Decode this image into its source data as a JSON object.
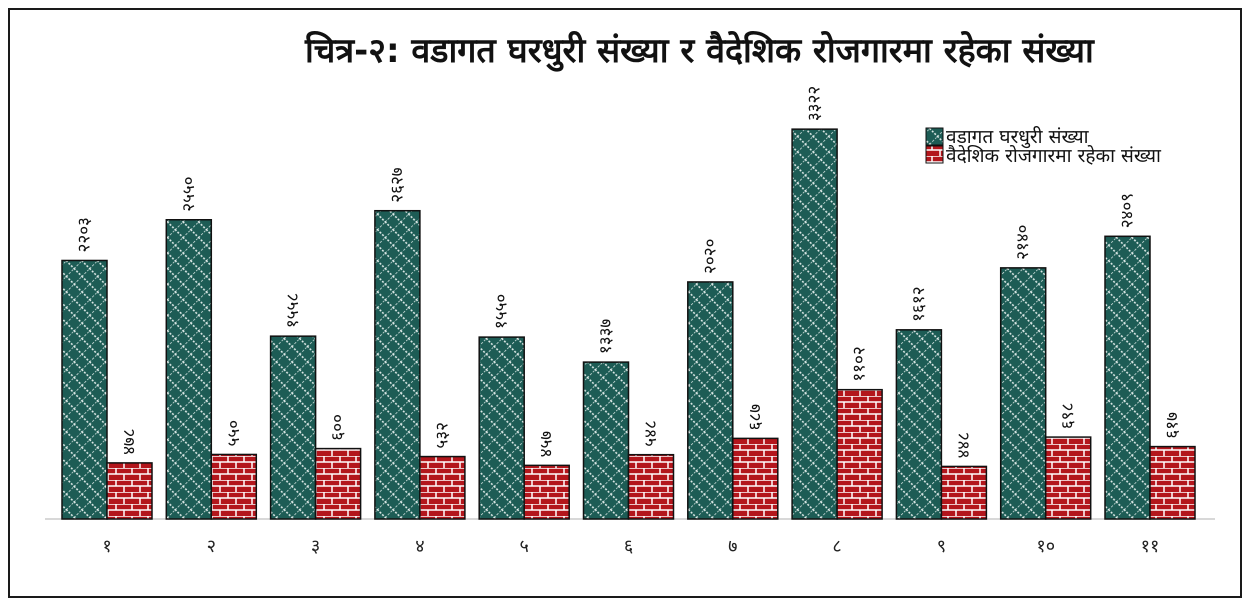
{
  "chart_data": {
    "type": "bar",
    "title": "चित्र-२: वडागत घरधुरी संख्या र वैदेशिक  रोजगारमा रहेका संख्या",
    "categories": [
      "१",
      "२",
      "३",
      "४",
      "५",
      "६",
      "७",
      "८",
      "९",
      "१०",
      "११"
    ],
    "series": [
      {
        "name": "वडागत  घरधुरी संख्या",
        "values": [
          2203,
          2550,
          1558,
          2627,
          1550,
          1337,
          2020,
          3322,
          1612,
          2140,
          2409
        ],
        "labels": [
          "२२०३",
          "२५५०",
          "१५५८",
          "२६२७",
          "१५५०",
          "१३३७",
          "२०२०",
          "३३२२",
          "१६१२",
          "२१४०",
          "२४०९"
        ],
        "color": "#1d5c55",
        "pattern": "diagonal-brick"
      },
      {
        "name": "वैदेशिक रोजगारमा रहेका संख्या",
        "values": [
          478,
          550,
          600,
          532,
          457,
          548,
          687,
          1102,
          448,
          698,
          617
        ],
        "labels": [
          "४७८",
          "५५०",
          "६००",
          "५३२",
          "४५७",
          "५४८",
          "६८७",
          "११०२",
          "४४८",
          "६९८",
          "६१७"
        ],
        "color": "#b3161c",
        "pattern": "brick"
      }
    ],
    "ylim": [
      0,
      3400
    ],
    "grid": false,
    "legend_position": "top-right"
  }
}
